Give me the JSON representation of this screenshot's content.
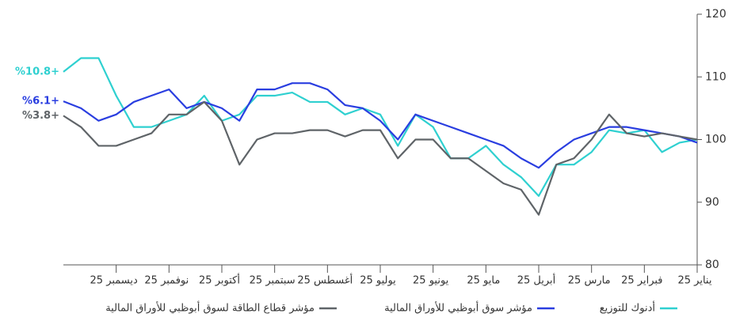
{
  "chart_data": {
    "type": "line",
    "categories": [
      "يناير 25",
      null,
      null,
      "فبراير 25",
      null,
      null,
      "مارس 25",
      null,
      null,
      "أبريل 25",
      null,
      null,
      "مايو 25",
      null,
      null,
      "يونيو 25",
      null,
      null,
      "يوليو 25",
      null,
      null,
      "أغسطس 25",
      null,
      null,
      "سبتمبر 25",
      null,
      null,
      "أكتوبر 25",
      null,
      null,
      "نوفمبر 25",
      null,
      null,
      "ديسمبر 25",
      null,
      null,
      null
    ],
    "x_reversed": true,
    "ylim": [
      80,
      120
    ],
    "yticks": [
      80,
      90,
      100,
      110,
      120
    ],
    "legend": "bottom",
    "series": [
      {
        "name": "أدنوك للتوزيع",
        "color": "#2fd0d0",
        "values": [
          100,
          99.5,
          98,
          101.5,
          101,
          101.5,
          98,
          96,
          96,
          91,
          94,
          96,
          99,
          97,
          97,
          102,
          104,
          99,
          104,
          105,
          104,
          106,
          106,
          107.5,
          107,
          107,
          104,
          103,
          107,
          104,
          103,
          102,
          102,
          107,
          113,
          113,
          110.8
        ],
        "value_labels": [
          null,
          null,
          null,
          null,
          null,
          null,
          null,
          null,
          null,
          null,
          null,
          null,
          null,
          null,
          null,
          null,
          null,
          null,
          null,
          null,
          null,
          null,
          null,
          null,
          null,
          null,
          null,
          null,
          null,
          null,
          null,
          null,
          null,
          null,
          null,
          null,
          "%10.8+"
        ]
      },
      {
        "name": "مؤشر سوق أبوظبي للأوراق المالية",
        "color": "#2a3ee0",
        "values": [
          99.5,
          100.5,
          101,
          101.5,
          102,
          102,
          101,
          100,
          98,
          95.5,
          97,
          99,
          100,
          101,
          102,
          103,
          104,
          100,
          103,
          105,
          105.5,
          108,
          109,
          109,
          108,
          108,
          103,
          105,
          106,
          105,
          108,
          107,
          106,
          104,
          103,
          105,
          106.1
        ],
        "value_labels": [
          null,
          null,
          null,
          null,
          null,
          null,
          null,
          null,
          null,
          null,
          null,
          null,
          null,
          null,
          null,
          null,
          null,
          null,
          null,
          null,
          null,
          null,
          null,
          null,
          null,
          null,
          null,
          null,
          null,
          null,
          null,
          null,
          null,
          null,
          null,
          null,
          "%6.1+"
        ]
      },
      {
        "name": "مؤشر قطاع الطاقة لسوق أبوظبي للأوراق المالية",
        "color": "#5f6468",
        "values": [
          100,
          100.5,
          101,
          100.5,
          101,
          104,
          100,
          97,
          96,
          88,
          92,
          93,
          95,
          97,
          97,
          100,
          100,
          97,
          101.5,
          101.5,
          100.5,
          101.5,
          101.5,
          101,
          101,
          100,
          96,
          103,
          106,
          104,
          104,
          101,
          100,
          99,
          99,
          102,
          103.8
        ],
        "value_labels": [
          null,
          null,
          null,
          null,
          null,
          null,
          null,
          null,
          null,
          null,
          null,
          null,
          null,
          null,
          null,
          null,
          null,
          null,
          null,
          null,
          null,
          null,
          null,
          null,
          null,
          null,
          null,
          null,
          null,
          null,
          null,
          null,
          null,
          null,
          null,
          null,
          "%3.8+"
        ]
      }
    ]
  }
}
